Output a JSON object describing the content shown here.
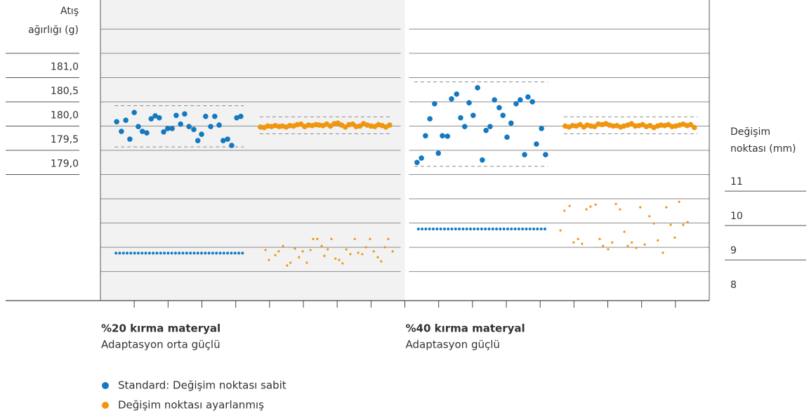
{
  "chart_data": {
    "type": "scatter",
    "y_label": [
      "Atış",
      "ağırlığı (g)"
    ],
    "y2_label": [
      "Değişim",
      "noktası (mm)"
    ],
    "ylim": [
      176.4,
      182.6
    ],
    "yticks": [
      {
        "value": 181,
        "label": "181,0"
      },
      {
        "value": 180.5,
        "label": "180,5"
      },
      {
        "value": 180,
        "label": "180,0"
      },
      {
        "value": 179.5,
        "label": "179,5"
      },
      {
        "value": 179,
        "label": "179,0"
      }
    ],
    "ygrid": [
      177,
      177.5,
      178,
      178.5,
      179,
      179.5,
      180,
      180.5,
      181,
      181.5,
      182
    ],
    "y2lim": [
      7.82,
      16.55
    ],
    "y2ticks": [
      8,
      9,
      10,
      11
    ],
    "xlim": [
      0,
      18
    ],
    "xticks": [
      1,
      2,
      3,
      4,
      5,
      6,
      7,
      8,
      9,
      10,
      11,
      12,
      13,
      14,
      15,
      16,
      17
    ],
    "panels": [
      {
        "xlim": [
          0,
          9
        ],
        "background": "#f2f2f2",
        "title": "%20 kırma materyal",
        "subtitle": "Adaptasyon orta güçlü"
      },
      {
        "xlim": [
          9,
          18
        ],
        "background": "#ffffff",
        "title": "%40 kırma materyal",
        "subtitle": "Adaptasyon güçlü"
      }
    ],
    "tolerance_bands": [
      {
        "xlim": [
          0.42,
          4.24
        ],
        "lower": 179.57,
        "upper": 180.42
      },
      {
        "xlim": [
          4.71,
          8.59
        ],
        "lower": 179.84,
        "upper": 180.19
      },
      {
        "xlim": [
          9.28,
          13.22
        ],
        "lower": 179.17,
        "upper": 180.91
      },
      {
        "xlim": [
          13.7,
          17.65
        ],
        "lower": 179.84,
        "upper": 180.19
      }
    ],
    "series": [
      {
        "name": "Standard: Değişim noktası sabit",
        "color": "#1479c0",
        "x": [
          0.48,
          0.62,
          0.75,
          0.87,
          1.0,
          1.12,
          1.24,
          1.37,
          1.5,
          1.62,
          1.74,
          1.87,
          1.99,
          2.12,
          2.24,
          2.37,
          2.49,
          2.62,
          2.76,
          2.88,
          2.99,
          3.11,
          3.26,
          3.38,
          3.51,
          3.63,
          3.76,
          3.88,
          4.03,
          4.15,
          9.36,
          9.49,
          9.61,
          9.74,
          9.88,
          9.99,
          10.11,
          10.26,
          10.38,
          10.53,
          10.65,
          10.77,
          10.9,
          11.02,
          11.15,
          11.29,
          11.4,
          11.52,
          11.65,
          11.79,
          11.9,
          12.02,
          12.14,
          12.29,
          12.41,
          12.54,
          12.64,
          12.77,
          12.89,
          13.04,
          13.16
        ],
        "values": [
          180.09,
          179.89,
          180.12,
          179.73,
          180.28,
          179.99,
          179.89,
          179.86,
          180.15,
          180.21,
          180.17,
          179.88,
          179.95,
          179.95,
          180.22,
          180.04,
          180.25,
          179.99,
          179.93,
          179.7,
          179.83,
          180.2,
          179.99,
          180.2,
          180.02,
          179.7,
          179.73,
          179.6,
          180.17,
          180.2,
          179.25,
          179.34,
          179.8,
          180.15,
          180.46,
          179.44,
          179.8,
          179.79,
          180.56,
          180.66,
          180.17,
          179.99,
          180.48,
          180.22,
          180.79,
          179.3,
          179.91,
          179.99,
          180.54,
          180.38,
          180.22,
          179.77,
          180.06,
          180.46,
          180.54,
          179.41,
          180.6,
          180.5,
          179.63,
          179.95,
          179.41
        ],
        "changepoint_x": [
          0.46,
          0.57,
          0.68,
          0.79,
          0.9,
          1.01,
          1.12,
          1.23,
          1.34,
          1.45,
          1.56,
          1.67,
          1.78,
          1.89,
          2.0,
          2.11,
          2.22,
          2.33,
          2.44,
          2.55,
          2.66,
          2.77,
          2.88,
          2.99,
          3.1,
          3.21,
          3.32,
          3.43,
          3.54,
          3.65,
          3.76,
          3.87,
          3.98,
          4.09,
          4.2,
          9.4,
          9.51,
          9.62,
          9.73,
          9.84,
          9.95,
          10.06,
          10.17,
          10.28,
          10.39,
          10.5,
          10.61,
          10.72,
          10.83,
          10.94,
          11.05,
          11.16,
          11.27,
          11.38,
          11.49,
          11.6,
          11.71,
          11.82,
          11.93,
          12.04,
          12.15,
          12.26,
          12.37,
          12.48,
          12.59,
          12.7,
          12.81,
          12.92,
          13.03,
          13.14
        ],
        "changepoint_values": [
          9.2,
          9.2,
          9.2,
          9.2,
          9.2,
          9.2,
          9.2,
          9.2,
          9.2,
          9.2,
          9.2,
          9.2,
          9.2,
          9.2,
          9.2,
          9.2,
          9.2,
          9.2,
          9.2,
          9.2,
          9.2,
          9.2,
          9.2,
          9.2,
          9.2,
          9.2,
          9.2,
          9.2,
          9.2,
          9.2,
          9.2,
          9.2,
          9.2,
          9.2,
          9.2,
          9.9,
          9.9,
          9.9,
          9.9,
          9.9,
          9.9,
          9.9,
          9.9,
          9.9,
          9.9,
          9.9,
          9.9,
          9.9,
          9.9,
          9.9,
          9.9,
          9.9,
          9.9,
          9.9,
          9.9,
          9.9,
          9.9,
          9.9,
          9.9,
          9.9,
          9.9,
          9.9,
          9.9,
          9.9,
          9.9,
          9.9,
          9.9,
          9.9,
          9.9,
          9.9
        ]
      },
      {
        "name": "Değişim noktası ayarlanmış",
        "color": "#f0950e",
        "x": [
          4.73,
          4.84,
          4.95,
          5.06,
          5.17,
          5.28,
          5.38,
          5.49,
          5.6,
          5.71,
          5.82,
          5.93,
          6.04,
          6.15,
          6.26,
          6.37,
          6.47,
          6.58,
          6.69,
          6.8,
          6.91,
          7.02,
          7.13,
          7.24,
          7.35,
          7.46,
          7.56,
          7.67,
          7.78,
          7.89,
          8.0,
          8.11,
          8.22,
          8.33,
          8.44,
          8.55,
          13.74,
          13.85,
          13.96,
          14.07,
          14.18,
          14.29,
          14.39,
          14.5,
          14.61,
          14.72,
          14.83,
          14.94,
          15.05,
          15.16,
          15.27,
          15.38,
          15.48,
          15.59,
          15.7,
          15.81,
          15.92,
          16.03,
          16.14,
          16.25,
          16.36,
          16.47,
          16.57,
          16.68,
          16.79,
          16.9,
          17.01,
          17.12,
          17.23,
          17.34,
          17.45,
          17.56
        ],
        "values": [
          179.98,
          179.97,
          180.0,
          179.99,
          180.01,
          179.99,
          180.0,
          179.98,
          180.01,
          180.0,
          180.03,
          180.04,
          179.99,
          180.02,
          180.01,
          180.03,
          180.02,
          180.01,
          180.04,
          180.0,
          180.05,
          180.06,
          180.02,
          179.98,
          180.03,
          180.04,
          179.99,
          180.0,
          180.05,
          180.02,
          180.0,
          179.99,
          180.03,
          180.01,
          179.98,
          180.02,
          180.0,
          179.98,
          180.01,
          180.0,
          180.03,
          179.98,
          180.02,
          180.0,
          179.99,
          180.04,
          180.03,
          180.05,
          180.02,
          180.0,
          180.01,
          179.98,
          180.0,
          180.02,
          180.05,
          180.0,
          180.01,
          180.03,
          179.99,
          180.01,
          179.97,
          180.0,
          180.02,
          180.01,
          180.03,
          179.99,
          180.0,
          180.02,
          180.04,
          180.01,
          180.03,
          179.97
        ],
        "changepoint_x": [
          4.88,
          4.98,
          5.17,
          5.27,
          5.4,
          5.52,
          5.62,
          5.75,
          5.87,
          5.98,
          6.1,
          6.21,
          6.29,
          6.41,
          6.54,
          6.62,
          6.72,
          6.83,
          6.95,
          7.06,
          7.16,
          7.27,
          7.39,
          7.52,
          7.62,
          7.74,
          7.85,
          7.97,
          8.08,
          8.2,
          8.3,
          8.41,
          8.51,
          8.64,
          13.6,
          13.72,
          13.87,
          13.99,
          14.12,
          14.24,
          14.37,
          14.49,
          14.64,
          14.76,
          14.86,
          15.01,
          15.13,
          15.24,
          15.36,
          15.49,
          15.59,
          15.71,
          15.84,
          15.96,
          16.09,
          16.23,
          16.36,
          16.48,
          16.63,
          16.73,
          16.86,
          16.98,
          17.11,
          17.23,
          17.36
        ],
        "changepoint_values": [
          9.29,
          9.0,
          9.14,
          9.25,
          9.41,
          8.84,
          8.92,
          9.33,
          9.08,
          9.25,
          8.92,
          9.29,
          9.61,
          9.61,
          9.41,
          9.12,
          9.31,
          9.61,
          9.04,
          9.0,
          8.9,
          9.31,
          9.17,
          9.61,
          9.21,
          9.17,
          9.37,
          9.61,
          9.25,
          9.08,
          8.96,
          9.37,
          9.61,
          9.25,
          9.86,
          10.43,
          10.57,
          9.51,
          9.61,
          9.47,
          10.47,
          10.55,
          10.61,
          9.61,
          9.41,
          9.31,
          9.51,
          10.63,
          10.47,
          9.82,
          9.41,
          9.51,
          9.35,
          10.53,
          9.45,
          10.27,
          10.06,
          9.57,
          9.21,
          10.53,
          10.02,
          9.65,
          10.69,
          10.02,
          10.1
        ]
      }
    ]
  }
}
